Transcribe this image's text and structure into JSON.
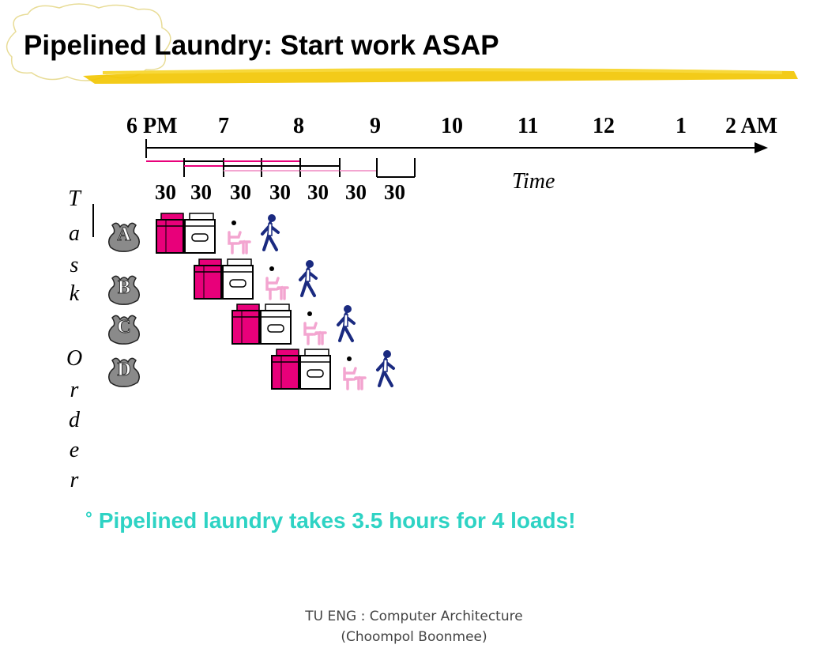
{
  "slide": {
    "title": "Pipelined Laundry: Start work ASAP",
    "highlight_color": "#f2c500",
    "accent_color": "#e8007a"
  },
  "timeline": {
    "hours": [
      "6 PM",
      "7",
      "8",
      "9",
      "10",
      "11",
      "12",
      "1",
      "2 AM"
    ],
    "durations": [
      "30",
      "30",
      "30",
      "30",
      "30",
      "30",
      "30"
    ],
    "axis_label": "Time"
  },
  "task_order": {
    "letters": [
      "T",
      "a",
      "s",
      "k",
      "O",
      "r",
      "d",
      "e",
      "r"
    ]
  },
  "tasks": [
    {
      "letter": "A",
      "stages": [
        "washer-icon",
        "dryer-icon",
        "folder-icon",
        "storer-icon"
      ]
    },
    {
      "letter": "B",
      "stages": [
        "washer-icon",
        "dryer-icon",
        "folder-icon",
        "storer-icon"
      ]
    },
    {
      "letter": "C",
      "stages": [
        "washer-icon",
        "dryer-icon",
        "folder-icon",
        "storer-icon"
      ]
    },
    {
      "letter": "D",
      "stages": [
        "washer-icon",
        "dryer-icon",
        "folder-icon",
        "storer-icon"
      ]
    }
  ],
  "summary": {
    "bullet": "°",
    "text": "Pipelined laundry takes 3.5 hours for 4 loads!"
  },
  "footer": {
    "line1": "TU ENG : Computer Architecture",
    "line2": "(Choompol Boonmee)"
  }
}
